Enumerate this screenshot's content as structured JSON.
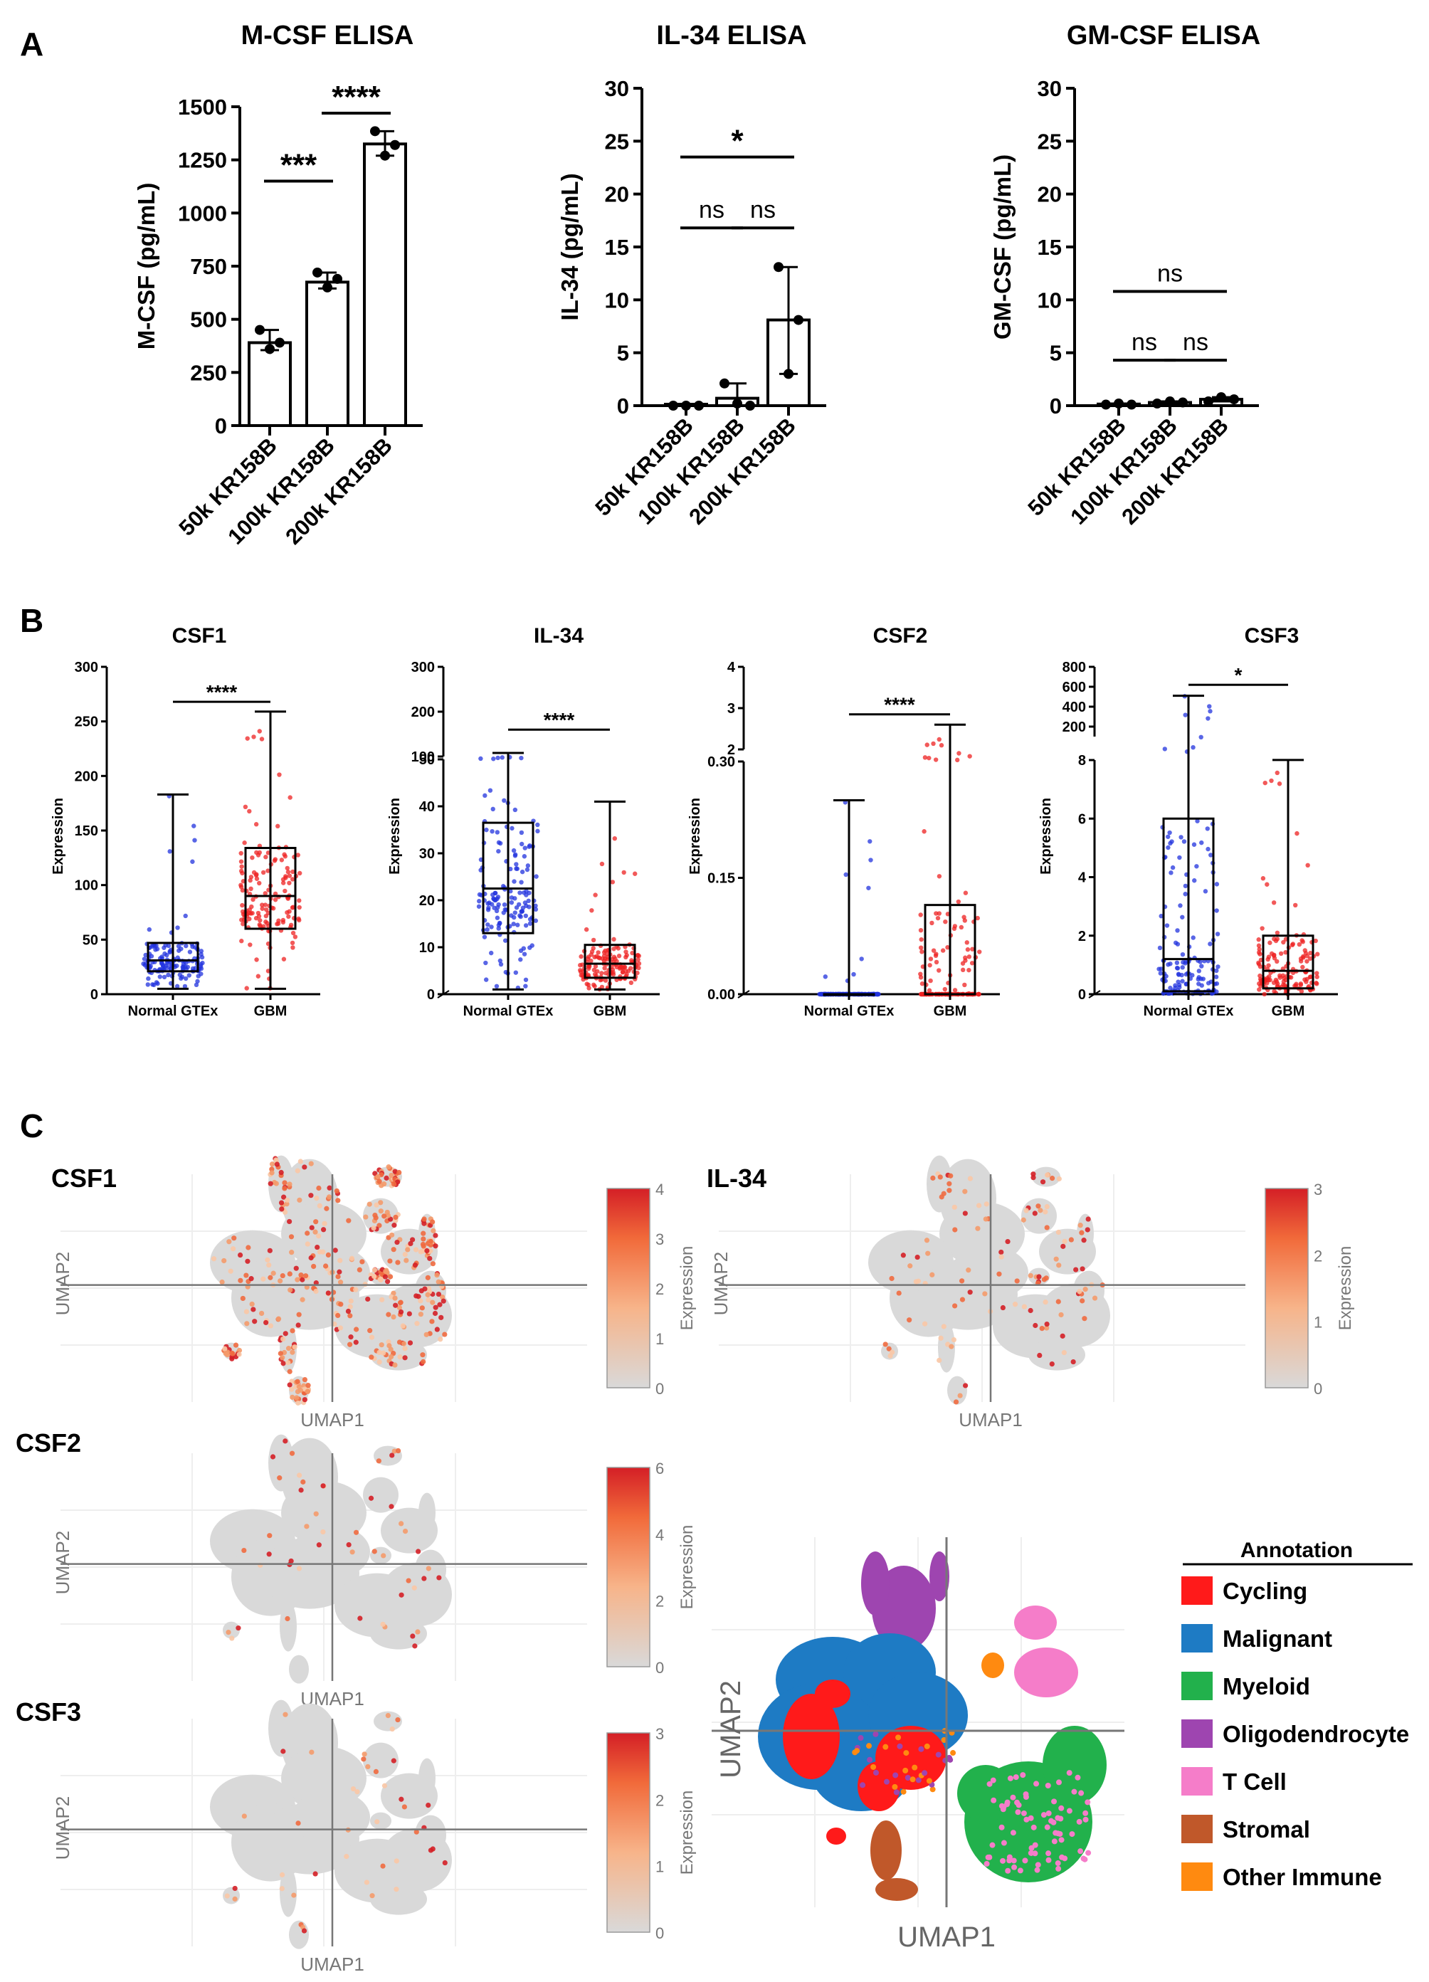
{
  "panels": {
    "a": "A",
    "b": "B",
    "c": "C"
  },
  "axes": {
    "umap1": "UMAP1",
    "umap2": "UMAP2",
    "expression": "Expression"
  },
  "chart_data": [
    {
      "id": "mcsf",
      "type": "bar",
      "title": "M-CSF ELISA",
      "ylabel": "M-CSF (pg/mL)",
      "categories": [
        "50k KR158B",
        "100k KR158B",
        "200k KR158B"
      ],
      "values": [
        390,
        675,
        1325
      ],
      "points": [
        [
          450,
          390,
          360
        ],
        [
          720,
          690,
          650
        ],
        [
          1385,
          1320,
          1270
        ]
      ],
      "err_low": [
        355,
        645,
        1270
      ],
      "err_high": [
        450,
        720,
        1385
      ],
      "ylim": [
        0,
        1500
      ],
      "yticks": [
        0,
        250,
        500,
        750,
        1000,
        1250,
        1500
      ],
      "significance": [
        {
          "from": 0,
          "to": 1,
          "label": "***",
          "y": 1150
        },
        {
          "from": 1,
          "to": 2,
          "label": "****",
          "y": 1470
        }
      ]
    },
    {
      "id": "il34",
      "type": "bar",
      "title": "IL-34 ELISA",
      "ylabel": "IL-34 (pg/mL)",
      "categories": [
        "50k KR158B",
        "100k KR158B",
        "200k KR158B"
      ],
      "values": [
        0,
        0.7,
        8.1
      ],
      "points": [
        [
          0,
          0,
          0
        ],
        [
          2.1,
          0.2,
          0
        ],
        [
          13.1,
          8.1,
          3.0
        ]
      ],
      "err_low": [
        0,
        0,
        3.0
      ],
      "err_high": [
        0,
        2.1,
        13.1
      ],
      "ylim": [
        0,
        30
      ],
      "yticks": [
        0,
        5,
        10,
        15,
        20,
        25,
        30
      ],
      "significance": [
        {
          "from": 0,
          "to": 1,
          "label": "ns",
          "y": 16.8
        },
        {
          "from": 1,
          "to": 2,
          "label": "ns",
          "y": 16.8
        },
        {
          "from": 0,
          "to": 2,
          "label": "*",
          "y": 23.5
        }
      ]
    },
    {
      "id": "gmcsf",
      "type": "bar",
      "title": "GM-CSF ELISA",
      "ylabel": "GM-CSF (pg/mL)",
      "categories": [
        "50k KR158B",
        "100k KR158B",
        "200k KR158B"
      ],
      "values": [
        0.15,
        0.3,
        0.6
      ],
      "points": [
        [
          0.1,
          0.2,
          0.1
        ],
        [
          0.2,
          0.4,
          0.3
        ],
        [
          0.4,
          0.8,
          0.6
        ]
      ],
      "err_low": [
        0.1,
        0.2,
        0.4
      ],
      "err_high": [
        0.2,
        0.4,
        0.8
      ],
      "ylim": [
        0,
        30
      ],
      "yticks": [
        0,
        5,
        10,
        15,
        20,
        25,
        30
      ],
      "significance": [
        {
          "from": 0,
          "to": 1,
          "label": "ns",
          "y": 4.3
        },
        {
          "from": 1,
          "to": 2,
          "label": "ns",
          "y": 4.3
        },
        {
          "from": 0,
          "to": 2,
          "label": "ns",
          "y": 10.8
        }
      ]
    },
    {
      "id": "csf1",
      "type": "box",
      "title": "CSF1",
      "ylabel": "Expression",
      "categories": [
        "Normal GTEx",
        "GBM"
      ],
      "boxes": [
        {
          "min": 5,
          "q1": 21,
          "median": 31,
          "q3": 47,
          "max": 183,
          "color": "#2233dd"
        },
        {
          "min": 5,
          "q1": 60,
          "median": 90,
          "q3": 134,
          "max": 259,
          "color": "#ee2222"
        }
      ],
      "ylim": [
        0,
        300
      ],
      "yticks": [
        0,
        50,
        100,
        150,
        200,
        250,
        300
      ],
      "significance": [
        {
          "from": 0,
          "to": 1,
          "label": "****",
          "y": 268
        }
      ]
    },
    {
      "id": "il34b",
      "type": "box",
      "title": "IL-34",
      "ylabel": "Expression",
      "categories": [
        "Normal GTEx",
        "GBM"
      ],
      "boxes": [
        {
          "min": 1,
          "q1": 13,
          "median": 22.5,
          "q3": 36.5,
          "max": 108,
          "color": "#2233dd"
        },
        {
          "min": 1,
          "q1": 3.5,
          "median": 6.5,
          "q3": 10.5,
          "max": 41,
          "color": "#ee2222"
        }
      ],
      "ylim": [
        0,
        300
      ],
      "yticks": [
        0,
        10,
        20,
        30,
        40,
        50,
        100,
        200,
        300
      ],
      "significance": [
        {
          "from": 0,
          "to": 1,
          "label": "****",
          "y": 160
        }
      ]
    },
    {
      "id": "csf2",
      "type": "box",
      "title": "CSF2",
      "ylabel": "Expression",
      "categories": [
        "Normal GTEx",
        "GBM"
      ],
      "boxes": [
        {
          "min": 0,
          "q1": 0,
          "median": 0,
          "q3": 0,
          "max": 0.25,
          "color": "#2233dd"
        },
        {
          "min": 0,
          "q1": 0,
          "median": 0,
          "q3": 0.115,
          "max": 2.6,
          "color": "#ee2222"
        }
      ],
      "ylim": [
        0,
        4
      ],
      "yticks": [
        0,
        0.15,
        0.3,
        2,
        3,
        4
      ],
      "ytick_labels": [
        "0.00",
        "0.15",
        "0.30",
        "2",
        "3",
        "4"
      ],
      "significance": [
        {
          "from": 0,
          "to": 1,
          "label": "****",
          "y": 2.85
        }
      ]
    },
    {
      "id": "csf3",
      "type": "box",
      "title": "CSF3",
      "ylabel": "Expression",
      "categories": [
        "Normal GTEx",
        "GBM"
      ],
      "boxes": [
        {
          "min": 0,
          "q1": 0.1,
          "median": 1.2,
          "q3": 6,
          "max": 510,
          "color": "#2233dd"
        },
        {
          "min": 0,
          "q1": 0.2,
          "median": 0.8,
          "q3": 2,
          "max": 8.5,
          "color": "#ee2222"
        }
      ],
      "ylim": [
        0,
        800
      ],
      "yticks": [
        0,
        2,
        4,
        6,
        8,
        200,
        400,
        600,
        800
      ],
      "significance": [
        {
          "from": 0,
          "to": 1,
          "label": "*",
          "y": 620
        }
      ]
    }
  ],
  "umaps": [
    {
      "id": "umap-csf1",
      "title": "CSF1",
      "scale_max": 4,
      "ticks": [
        0,
        1,
        2,
        3,
        4
      ]
    },
    {
      "id": "umap-il34",
      "title": "IL-34",
      "scale_max": 3,
      "ticks": [
        0,
        1,
        2,
        3
      ]
    },
    {
      "id": "umap-csf2",
      "title": "CSF2",
      "scale_max": 6,
      "ticks": [
        0,
        2,
        4,
        6
      ]
    },
    {
      "id": "umap-csf3",
      "title": "CSF3",
      "scale_max": 3,
      "ticks": [
        0,
        1,
        2,
        3
      ]
    }
  ],
  "legend": {
    "title": "Annotation",
    "items": [
      {
        "label": "Cycling",
        "color": "#ff1a1a"
      },
      {
        "label": "Malignant",
        "color": "#1e7bc4"
      },
      {
        "label": "Myeloid",
        "color": "#22b14c"
      },
      {
        "label": "Oligodendrocyte",
        "color": "#9e45b0"
      },
      {
        "label": "T Cell",
        "color": "#f57dc9"
      },
      {
        "label": "Stromal",
        "color": "#c0582a"
      },
      {
        "label": "Other Immune",
        "color": "#ff8a10"
      }
    ]
  }
}
